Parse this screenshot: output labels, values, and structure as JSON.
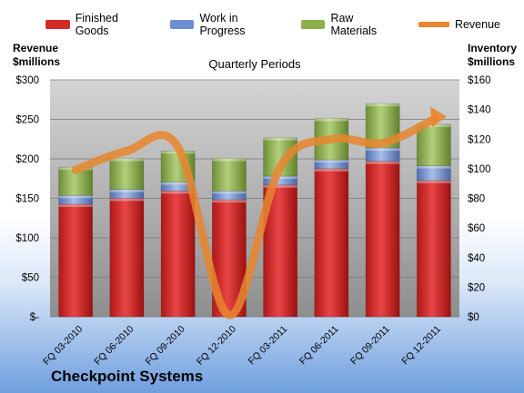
{
  "chart_data": {
    "type": "bar",
    "stacked": true,
    "title": "Quarterly Periods",
    "categories": [
      "FQ 03-2010",
      "FQ 06-2010",
      "FQ 09-2010",
      "FQ 12-2010",
      "FQ 03-2011",
      "FQ 06-2011",
      "FQ 09-2011",
      "FQ 12-2011"
    ],
    "series": [
      {
        "name": "Finished Goods",
        "axis": "right",
        "color": "#d42a2a",
        "values": [
          76,
          80,
          85,
          79,
          89,
          100,
          105,
          92
        ]
      },
      {
        "name": "Work in Progress",
        "axis": "right",
        "color": "#6b8fd0",
        "values": [
          6,
          6,
          6,
          6,
          6,
          6,
          9,
          10
        ]
      },
      {
        "name": "Raw Materials",
        "axis": "right",
        "color": "#8db04b",
        "values": [
          19,
          21,
          21,
          22,
          26,
          28,
          30,
          28
        ]
      },
      {
        "name": "Revenue",
        "type": "line",
        "axis": "left",
        "color": "#e8862e",
        "values": [
          186,
          210,
          215,
          2,
          190,
          225,
          220,
          250
        ]
      }
    ],
    "left_axis": {
      "label_line1": "Revenue",
      "label_line2": "$millions",
      "ylim": [
        0,
        300
      ],
      "ticks": [
        "$-",
        "$50",
        "$100",
        "$150",
        "$200",
        "$250",
        "$300"
      ]
    },
    "right_axis": {
      "label_line1": "Inventory",
      "label_line2": "$millions",
      "ylim": [
        0,
        160
      ],
      "ticks": [
        "$0",
        "$20",
        "$40",
        "$60",
        "$80",
        "$100",
        "$120",
        "$140",
        "$160"
      ]
    },
    "legend_position": "top",
    "grid": true
  },
  "company": "Checkpoint Systems"
}
